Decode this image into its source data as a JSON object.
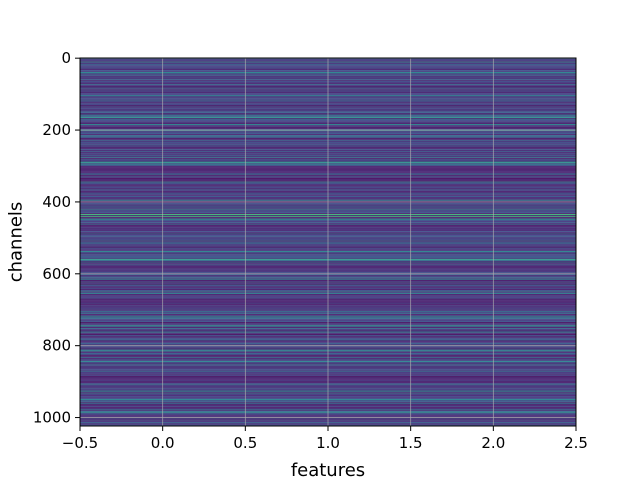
{
  "chart_data": {
    "type": "heatmap",
    "title": "",
    "xlabel": "features",
    "ylabel": "channels",
    "xlim": [
      -0.5,
      2.5
    ],
    "ylim": [
      1023.5,
      -0.5
    ],
    "x_ticks": [
      -0.5,
      0.0,
      0.5,
      1.0,
      1.5,
      2.0,
      2.5
    ],
    "x_tick_labels": [
      "−0.5",
      "0.0",
      "0.5",
      "1.0",
      "1.5",
      "2.0",
      "2.5"
    ],
    "y_ticks": [
      0,
      200,
      400,
      600,
      800,
      1000
    ],
    "y_tick_labels": [
      "0",
      "200",
      "400",
      "600",
      "800",
      "1000"
    ],
    "n_features": 3,
    "n_channels": 1024,
    "colormap": "viridis",
    "grid": true,
    "grid_color": "#b0b0b0",
    "value_range": [
      0,
      1
    ],
    "dark_bands": [
      {
        "channel_range": [
          240,
          250
        ],
        "value": 0.03
      },
      {
        "channel_range": [
          300,
          345
        ],
        "value": 0.05
      },
      {
        "channel_range": [
          460,
          480
        ],
        "value": 0.05
      },
      {
        "channel_range": [
          570,
          590
        ],
        "value": 0.06
      },
      {
        "channel_range": [
          670,
          700
        ],
        "value": 0.05
      },
      {
        "channel_range": [
          890,
          905
        ],
        "value": 0.05
      }
    ],
    "bright_rows": [
      {
        "channel": 40,
        "value": 0.55
      },
      {
        "channel": 165,
        "value": 0.6
      },
      {
        "channel": 185,
        "value": 0.55
      },
      {
        "channel": 290,
        "value": 0.6
      },
      {
        "channel": 395,
        "value": 0.55
      },
      {
        "channel": 435,
        "value": 0.8
      },
      {
        "channel": 440,
        "value": 0.75
      },
      {
        "channel": 560,
        "value": 0.65
      },
      {
        "channel": 615,
        "value": 0.5
      },
      {
        "channel": 720,
        "value": 0.6
      },
      {
        "channel": 745,
        "value": 0.65
      },
      {
        "channel": 815,
        "value": 0.5
      },
      {
        "channel": 950,
        "value": 0.55
      },
      {
        "channel": 985,
        "value": 0.6
      }
    ]
  }
}
